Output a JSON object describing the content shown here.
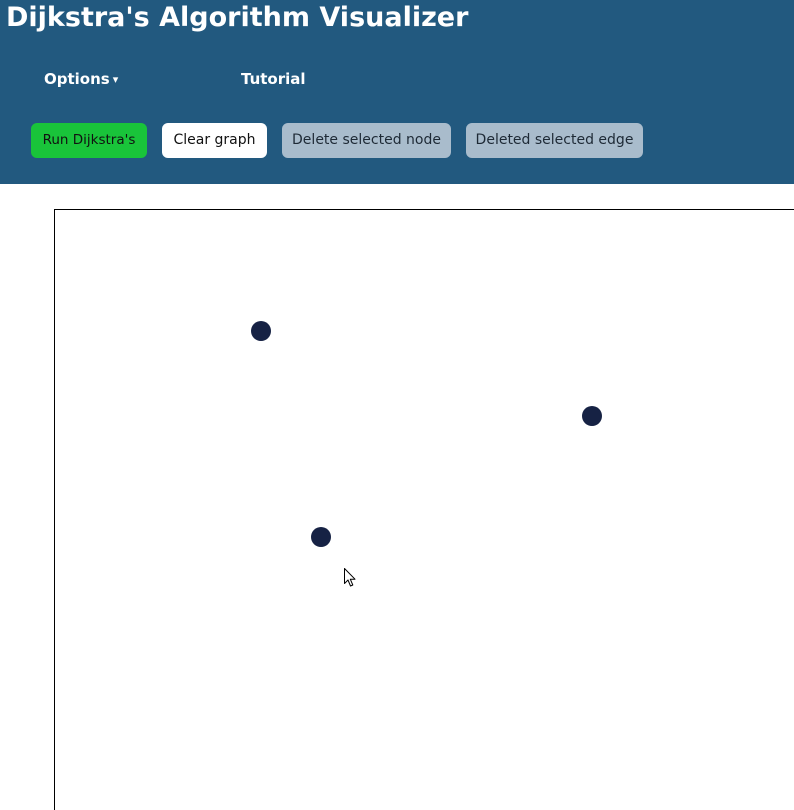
{
  "app": {
    "title": "Dijkstra's Algorithm Visualizer"
  },
  "nav": {
    "options_label": "Options",
    "options_caret": "▾",
    "tutorial_label": "Tutorial"
  },
  "toolbar": {
    "run_label": "Run Dijkstra's",
    "clear_label": "Clear graph",
    "delete_node_label": "Delete selected node",
    "delete_edge_label": "Deleted selected edge"
  },
  "colors": {
    "header_bg": "#22597f",
    "run_button": "#19c43a",
    "disabled_button": "#a9bccc",
    "node": "#162244"
  },
  "graph": {
    "nodes": [
      {
        "id": "node-1"
      },
      {
        "id": "node-2"
      },
      {
        "id": "node-3"
      }
    ],
    "edges": []
  }
}
